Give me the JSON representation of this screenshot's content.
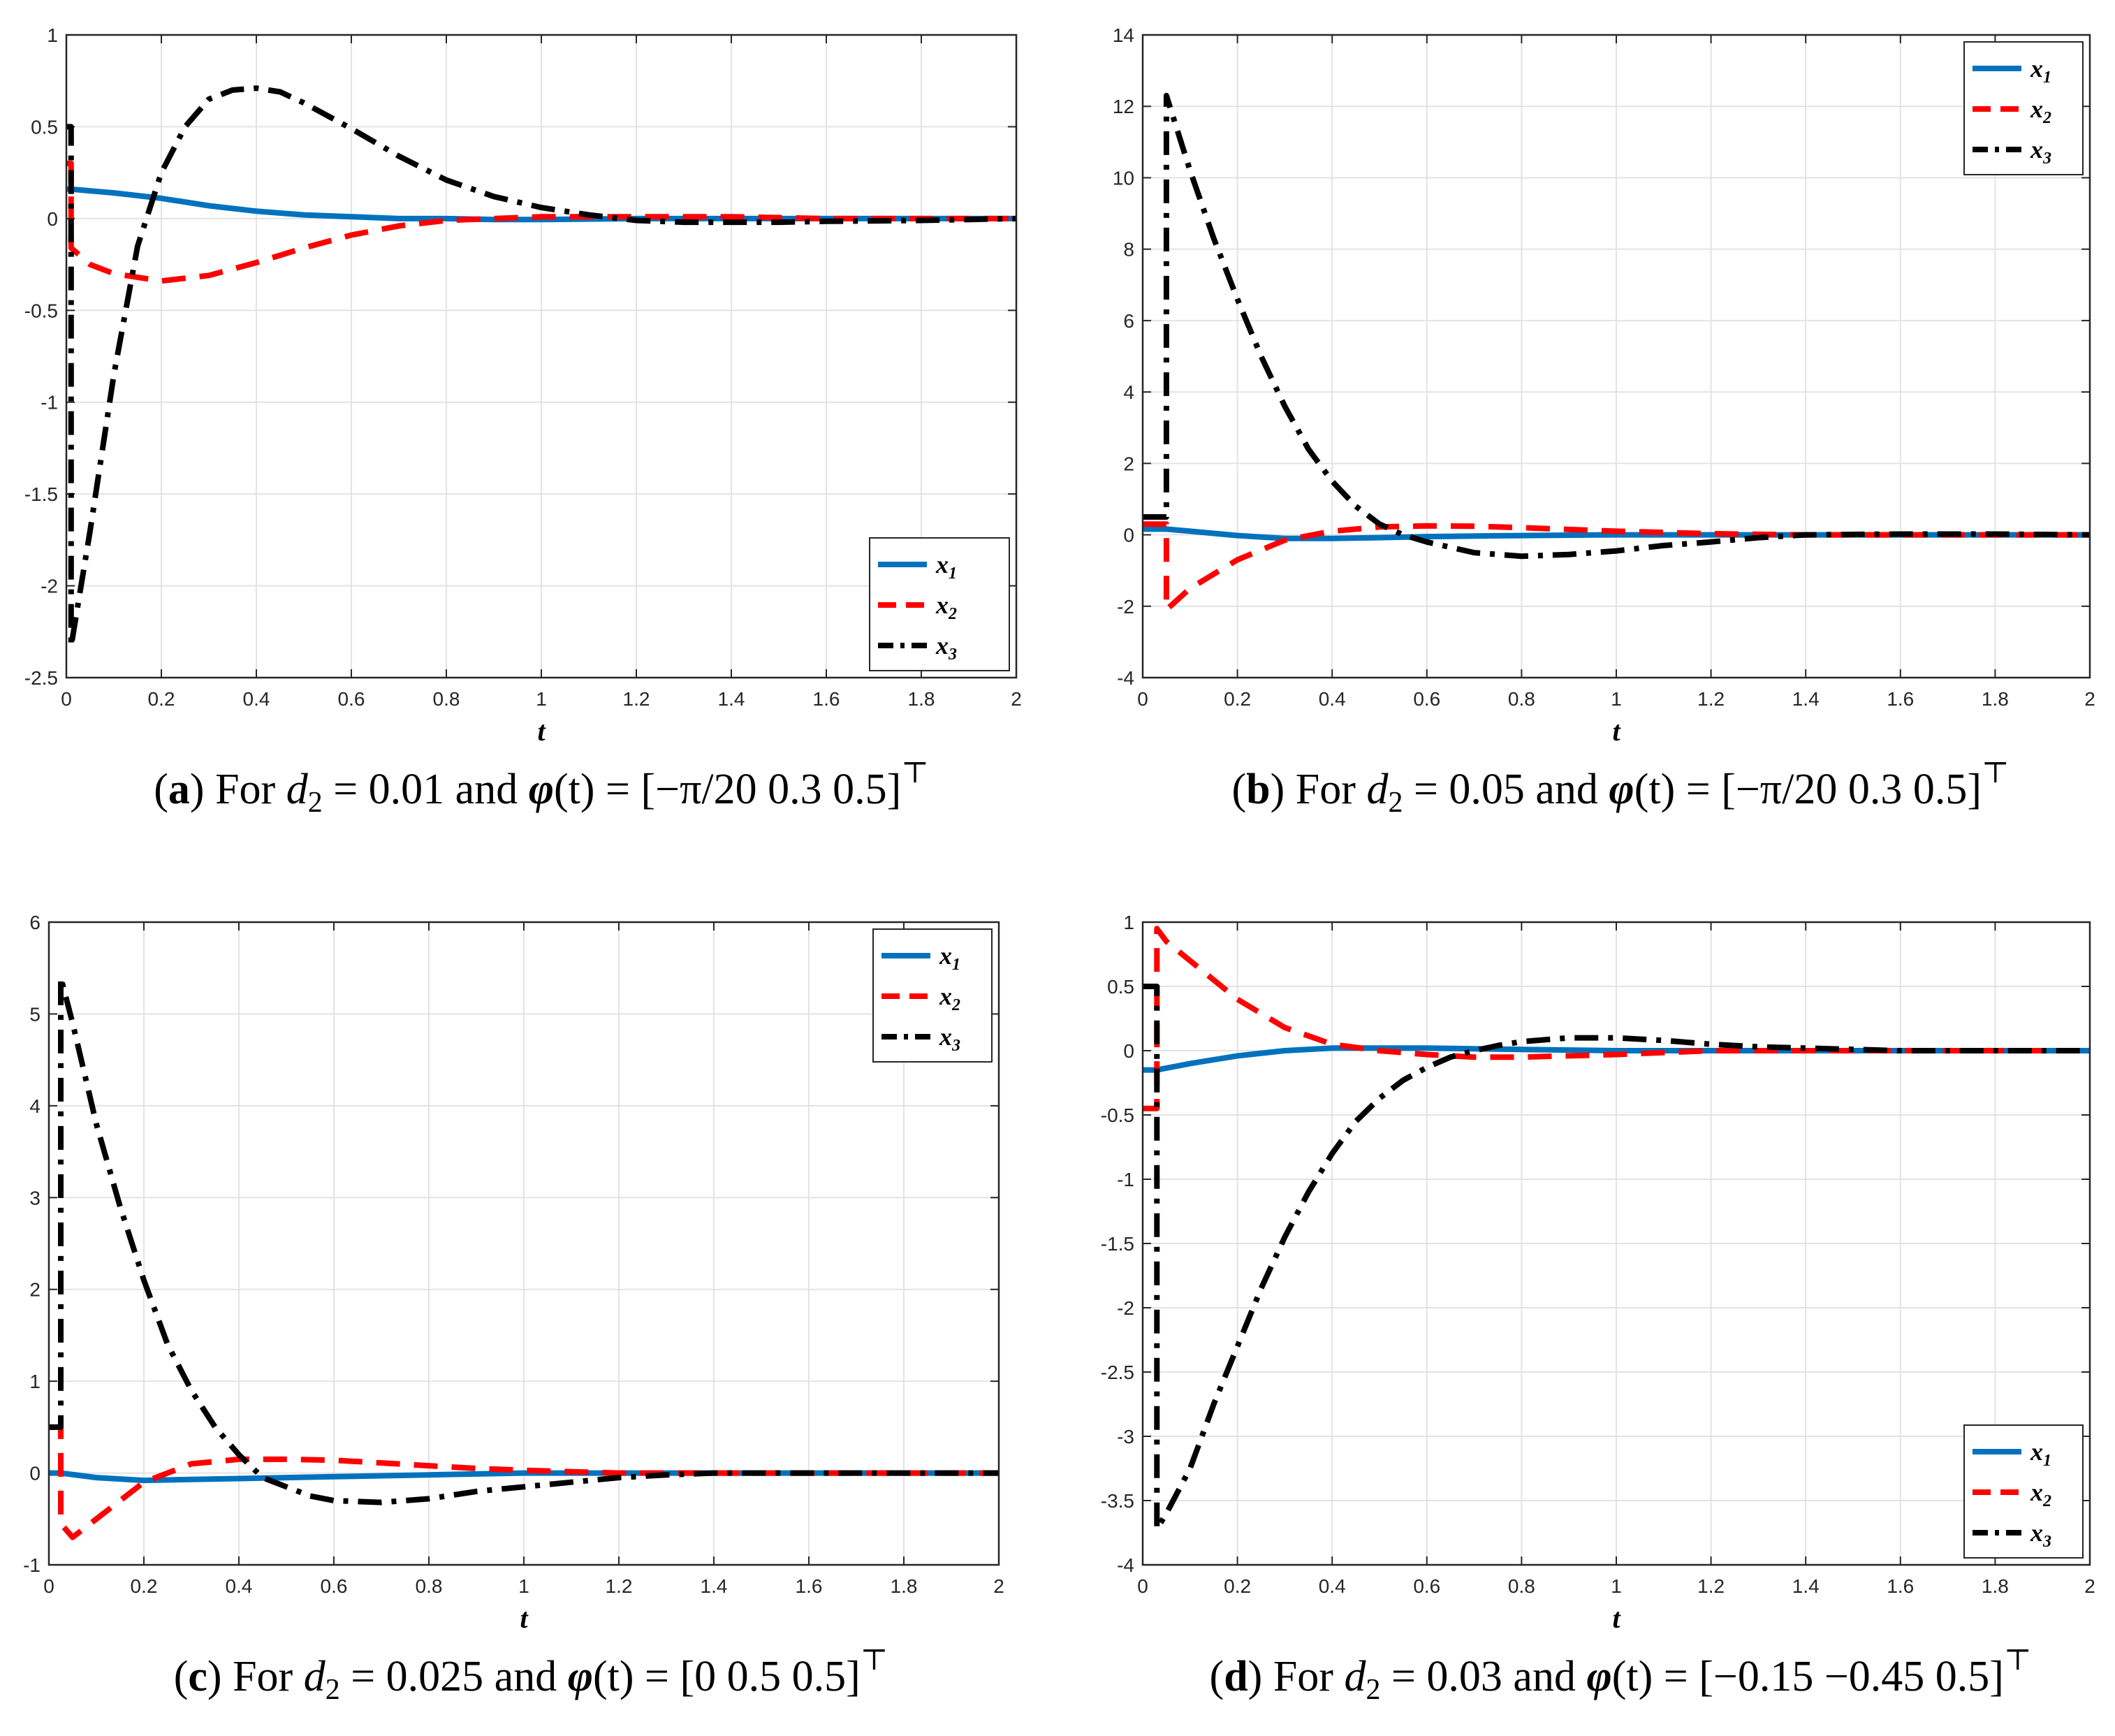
{
  "chart_data": [
    {
      "id": "a",
      "type": "line",
      "xlabel": "t",
      "xlim": [
        0,
        2
      ],
      "ylim": [
        -2.5,
        1
      ],
      "xticks": [
        "0",
        "0.2",
        "0.4",
        "0.6",
        "0.8",
        "1",
        "1.2",
        "1.4",
        "1.6",
        "1.8",
        "2"
      ],
      "yticks": [
        "-2.5",
        "-2",
        "-1.5",
        "-1",
        "-0.5",
        "0",
        "0.5",
        "1"
      ],
      "legend_position": "bottom-right",
      "grid": true,
      "caption": {
        "letter": "a",
        "lead": "For",
        "var": "d",
        "sub": "2",
        "eq": "= 0.01 and",
        "phi": "φ",
        "arg": "(t) =",
        "bracket": "[−π/20 0.3 0.5]",
        "transpose": "⊤"
      },
      "series": [
        {
          "name": "x1",
          "label": "x",
          "sub": "1",
          "color": "#0072BD",
          "style": "solid",
          "x": [
            0,
            0.01,
            0.01,
            0.1,
            0.2,
            0.3,
            0.4,
            0.5,
            0.6,
            0.7,
            0.8,
            0.9,
            1.0,
            1.2,
            1.4,
            1.6,
            1.8,
            2.0
          ],
          "y": [
            0.16,
            0.16,
            0.16,
            0.14,
            0.11,
            0.07,
            0.04,
            0.02,
            0.01,
            0.0,
            0.0,
            -0.005,
            -0.005,
            0.0,
            0.0,
            0.0,
            0.0,
            0.0
          ]
        },
        {
          "name": "x2",
          "label": "x",
          "sub": "2",
          "color": "#FF0000",
          "style": "dash",
          "x": [
            0,
            0.01,
            0.01,
            0.05,
            0.1,
            0.2,
            0.3,
            0.4,
            0.5,
            0.6,
            0.7,
            0.8,
            0.9,
            1.0,
            1.2,
            1.4,
            1.6,
            1.8,
            2.0
          ],
          "y": [
            0.3,
            0.3,
            -0.16,
            -0.25,
            -0.3,
            -0.34,
            -0.31,
            -0.24,
            -0.16,
            -0.09,
            -0.04,
            -0.01,
            0.0,
            0.01,
            0.01,
            0.01,
            0.0,
            0.0,
            0.0
          ]
        },
        {
          "name": "x3",
          "label": "x",
          "sub": "3",
          "color": "#000000",
          "style": "dashdot",
          "x": [
            0,
            0.01,
            0.01,
            0.05,
            0.1,
            0.15,
            0.2,
            0.25,
            0.3,
            0.35,
            0.4,
            0.45,
            0.5,
            0.6,
            0.7,
            0.8,
            0.9,
            1.0,
            1.1,
            1.2,
            1.3,
            1.4,
            1.5,
            1.6,
            1.8,
            2.0
          ],
          "y": [
            0.5,
            0.5,
            -2.33,
            -1.7,
            -0.85,
            -0.15,
            0.25,
            0.5,
            0.65,
            0.7,
            0.71,
            0.69,
            0.63,
            0.49,
            0.34,
            0.21,
            0.12,
            0.06,
            0.02,
            -0.01,
            -0.02,
            -0.02,
            -0.02,
            -0.015,
            -0.01,
            0.0
          ]
        }
      ]
    },
    {
      "id": "b",
      "type": "line",
      "xlabel": "t",
      "xlim": [
        0,
        2
      ],
      "ylim": [
        -4,
        14
      ],
      "xticks": [
        "0",
        "0.2",
        "0.4",
        "0.6",
        "0.8",
        "1",
        "1.2",
        "1.4",
        "1.6",
        "1.8",
        "2"
      ],
      "yticks": [
        "-4",
        "-2",
        "0",
        "2",
        "4",
        "6",
        "8",
        "10",
        "12",
        "14"
      ],
      "legend_position": "top-right",
      "grid": true,
      "caption": {
        "letter": "b",
        "lead": "For",
        "var": "d",
        "sub": "2",
        "eq": "= 0.05 and",
        "phi": "φ",
        "arg": "(t) =",
        "bracket": "[−π/20 0.3 0.5]",
        "transpose": "⊤"
      },
      "series": [
        {
          "name": "x1",
          "label": "x",
          "sub": "1",
          "color": "#0072BD",
          "style": "solid",
          "x": [
            0,
            0.05,
            0.05,
            0.1,
            0.2,
            0.3,
            0.4,
            0.5,
            0.6,
            0.8,
            1.0,
            1.2,
            1.4,
            1.6,
            1.8,
            2.0
          ],
          "y": [
            0.16,
            0.16,
            0.16,
            0.1,
            -0.02,
            -0.1,
            -0.1,
            -0.08,
            -0.05,
            -0.02,
            0.0,
            0.0,
            0.0,
            0.0,
            0.0,
            0.0
          ]
        },
        {
          "name": "x2",
          "label": "x",
          "sub": "2",
          "color": "#FF0000",
          "style": "dash",
          "x": [
            0,
            0.05,
            0.05,
            0.1,
            0.2,
            0.3,
            0.4,
            0.5,
            0.6,
            0.7,
            0.8,
            0.9,
            1.0,
            1.2,
            1.4,
            1.6,
            1.8,
            2.0
          ],
          "y": [
            0.3,
            0.3,
            -2.1,
            -1.5,
            -0.7,
            -0.15,
            0.1,
            0.22,
            0.25,
            0.24,
            0.2,
            0.15,
            0.1,
            0.03,
            0.0,
            0.0,
            0.0,
            0.0
          ]
        },
        {
          "name": "x3",
          "label": "x",
          "sub": "3",
          "color": "#000000",
          "style": "dashdot",
          "x": [
            0,
            0.05,
            0.05,
            0.1,
            0.15,
            0.2,
            0.25,
            0.3,
            0.35,
            0.4,
            0.45,
            0.5,
            0.55,
            0.6,
            0.7,
            0.8,
            0.9,
            1.0,
            1.1,
            1.2,
            1.3,
            1.4,
            1.6,
            1.8,
            2.0
          ],
          "y": [
            0.5,
            0.5,
            12.3,
            10.2,
            8.3,
            6.6,
            5.0,
            3.6,
            2.4,
            1.5,
            0.8,
            0.3,
            0.0,
            -0.2,
            -0.5,
            -0.6,
            -0.55,
            -0.45,
            -0.3,
            -0.2,
            -0.08,
            0.0,
            0.02,
            0.02,
            0.0
          ]
        }
      ]
    },
    {
      "id": "c",
      "type": "line",
      "xlabel": "t",
      "xlim": [
        0,
        2
      ],
      "ylim": [
        -1,
        6
      ],
      "xticks": [
        "0",
        "0.2",
        "0.4",
        "0.6",
        "0.8",
        "1",
        "1.2",
        "1.4",
        "1.6",
        "1.8",
        "2"
      ],
      "yticks": [
        "-1",
        "0",
        "1",
        "2",
        "3",
        "4",
        "5",
        "6"
      ],
      "legend_position": "top-right",
      "grid": true,
      "caption": {
        "letter": "c",
        "lead": "For",
        "var": "d",
        "sub": "2",
        "eq": "= 0.025 and",
        "phi": "φ",
        "arg": "(t) =",
        "bracket": "[0 0.5 0.5]",
        "transpose": "⊤"
      },
      "series": [
        {
          "name": "x1",
          "label": "x",
          "sub": "1",
          "color": "#0072BD",
          "style": "solid",
          "x": [
            0,
            0.025,
            0.1,
            0.2,
            0.3,
            0.4,
            0.5,
            0.6,
            0.8,
            1.0,
            1.2,
            1.4,
            1.6,
            1.8,
            2.0
          ],
          "y": [
            0.0,
            0.0,
            -0.05,
            -0.08,
            -0.07,
            -0.06,
            -0.05,
            -0.04,
            -0.02,
            0.0,
            0.0,
            0.0,
            0.0,
            0.0,
            0.0
          ]
        },
        {
          "name": "x2",
          "label": "x",
          "sub": "2",
          "color": "#FF0000",
          "style": "dash",
          "x": [
            0,
            0.025,
            0.025,
            0.05,
            0.1,
            0.2,
            0.3,
            0.4,
            0.5,
            0.6,
            0.7,
            0.8,
            0.9,
            1.0,
            1.2,
            1.4,
            1.6,
            1.8,
            2.0
          ],
          "y": [
            0.5,
            0.5,
            -0.55,
            -0.7,
            -0.5,
            -0.1,
            0.1,
            0.15,
            0.15,
            0.14,
            0.11,
            0.08,
            0.05,
            0.03,
            0.0,
            0.0,
            0.0,
            0.0,
            0.0
          ]
        },
        {
          "name": "x3",
          "label": "x",
          "sub": "3",
          "color": "#000000",
          "style": "dashdot",
          "x": [
            0,
            0.025,
            0.025,
            0.05,
            0.1,
            0.15,
            0.2,
            0.25,
            0.3,
            0.35,
            0.4,
            0.45,
            0.5,
            0.55,
            0.6,
            0.7,
            0.8,
            0.9,
            1.0,
            1.1,
            1.2,
            1.3,
            1.4,
            1.6,
            1.8,
            2.0
          ],
          "y": [
            0.5,
            0.5,
            5.4,
            4.9,
            3.8,
            2.9,
            2.1,
            1.4,
            0.9,
            0.5,
            0.2,
            -0.05,
            -0.15,
            -0.25,
            -0.3,
            -0.32,
            -0.28,
            -0.2,
            -0.15,
            -0.1,
            -0.05,
            -0.02,
            0.0,
            0.0,
            0.0,
            0.0
          ]
        }
      ]
    },
    {
      "id": "d",
      "type": "line",
      "xlabel": "t",
      "xlim": [
        0,
        2
      ],
      "ylim": [
        -4,
        1
      ],
      "xticks": [
        "0",
        "0.2",
        "0.4",
        "0.6",
        "0.8",
        "1",
        "1.2",
        "1.4",
        "1.6",
        "1.8",
        "2"
      ],
      "yticks": [
        "-4",
        "-3.5",
        "-3",
        "-2.5",
        "-2",
        "-1.5",
        "-1",
        "-0.5",
        "0",
        "0.5",
        "1"
      ],
      "legend_position": "bottom-right",
      "grid": true,
      "caption": {
        "letter": "d",
        "lead": "For",
        "var": "d",
        "sub": "2",
        "eq": "= 0.03 and",
        "phi": "φ",
        "arg": "(t) =",
        "bracket": "[−0.15  −0.45 0.5]",
        "transpose": "⊤"
      },
      "series": [
        {
          "name": "x1",
          "label": "x",
          "sub": "1",
          "color": "#0072BD",
          "style": "solid",
          "x": [
            0,
            0.03,
            0.03,
            0.1,
            0.2,
            0.3,
            0.4,
            0.5,
            0.6,
            0.8,
            1.0,
            1.2,
            1.4,
            1.6,
            1.8,
            2.0
          ],
          "y": [
            -0.15,
            -0.15,
            -0.15,
            -0.1,
            -0.04,
            0.0,
            0.02,
            0.02,
            0.02,
            0.01,
            0.0,
            0.0,
            0.0,
            0.0,
            0.0,
            0.0
          ]
        },
        {
          "name": "x2",
          "label": "x",
          "sub": "2",
          "color": "#FF0000",
          "style": "dash",
          "x": [
            0,
            0.03,
            0.03,
            0.05,
            0.1,
            0.2,
            0.3,
            0.4,
            0.5,
            0.6,
            0.7,
            0.8,
            0.9,
            1.0,
            1.2,
            1.4,
            1.6,
            1.8,
            2.0
          ],
          "y": [
            -0.45,
            -0.45,
            0.95,
            0.85,
            0.7,
            0.4,
            0.18,
            0.05,
            0.0,
            -0.03,
            -0.05,
            -0.05,
            -0.04,
            -0.03,
            0.0,
            0.0,
            0.0,
            0.0,
            0.0
          ]
        },
        {
          "name": "x3",
          "label": "x",
          "sub": "3",
          "color": "#000000",
          "style": "dashdot",
          "x": [
            0,
            0.03,
            0.03,
            0.05,
            0.1,
            0.15,
            0.2,
            0.25,
            0.3,
            0.35,
            0.4,
            0.45,
            0.5,
            0.55,
            0.6,
            0.65,
            0.7,
            0.75,
            0.8,
            0.9,
            1.0,
            1.1,
            1.2,
            1.3,
            1.4,
            1.6,
            1.8,
            2.0
          ],
          "y": [
            0.5,
            0.5,
            -3.72,
            -3.6,
            -3.25,
            -2.75,
            -2.3,
            -1.85,
            -1.45,
            -1.1,
            -0.8,
            -0.55,
            -0.37,
            -0.23,
            -0.13,
            -0.05,
            0.0,
            0.04,
            0.07,
            0.1,
            0.1,
            0.08,
            0.05,
            0.03,
            0.02,
            0.0,
            0.0,
            0.0
          ]
        }
      ]
    }
  ]
}
